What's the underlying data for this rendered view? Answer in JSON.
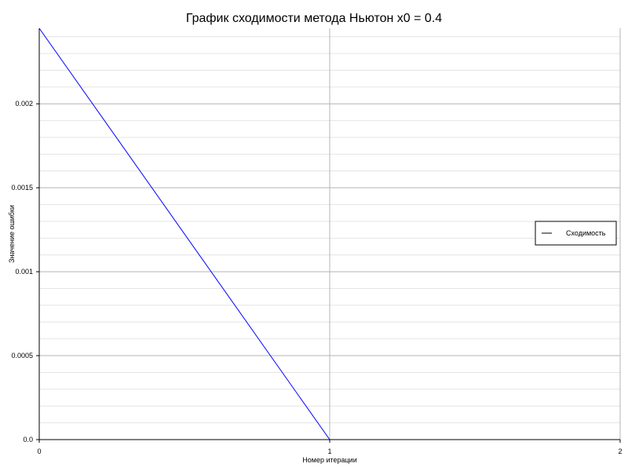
{
  "chart_data": {
    "type": "line",
    "title": "График сходимости метода Ньютон x0 = 0.4",
    "xlabel": "Номер итерации",
    "ylabel": "Значение ошибки",
    "xlim": [
      0,
      2
    ],
    "ylim": [
      0,
      0.00245
    ],
    "x_ticks": [
      0,
      1,
      2
    ],
    "x_tick_labels": [
      "0",
      "1",
      "2"
    ],
    "y_ticks": [
      0,
      0.0005,
      0.001,
      0.0015,
      0.002
    ],
    "y_tick_labels": [
      "0.0",
      "0.0005",
      "0.001",
      "0.0015",
      "0.002"
    ],
    "y_minor_step": 0.0001,
    "grid": true,
    "legend_position": "right",
    "series": [
      {
        "name": "Сходимость",
        "color": "#0000ff",
        "x": [
          0,
          1
        ],
        "y": [
          0.00245,
          0.0
        ]
      }
    ]
  }
}
